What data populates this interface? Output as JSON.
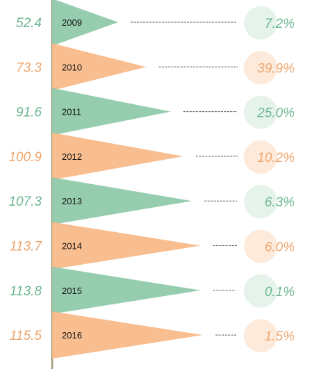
{
  "chart_data": {
    "type": "bar",
    "categories": [
      "2009",
      "2010",
      "2011",
      "2012",
      "2013",
      "2014",
      "2015",
      "2016"
    ],
    "values": [
      52.4,
      73.3,
      91.6,
      100.9,
      107.3,
      113.7,
      113.8,
      115.5
    ],
    "value_labels": [
      "52.4",
      "73.3",
      "91.6",
      "100.9",
      "107.3",
      "113.7",
      "113.8",
      "115.5"
    ],
    "growth_labels": [
      "7.2%",
      "39.9%",
      "25.0%",
      "10.2%",
      "6.3%",
      "6.0%",
      "0.1%",
      "1.5%"
    ],
    "growth": [
      7.2,
      39.9,
      25.0,
      10.2,
      6.3,
      6.0,
      0.1,
      1.5
    ],
    "grid": false,
    "legend": "none",
    "colors": {
      "green": "#8dc9a8",
      "orange": "#f8b887",
      "green_text": "#6bb690",
      "orange_text": "#eea56c",
      "green_circle": "#e5f3ea",
      "orange_circle": "#fdeadb",
      "axis_line": "#a7a488",
      "dash": "#555555"
    }
  }
}
